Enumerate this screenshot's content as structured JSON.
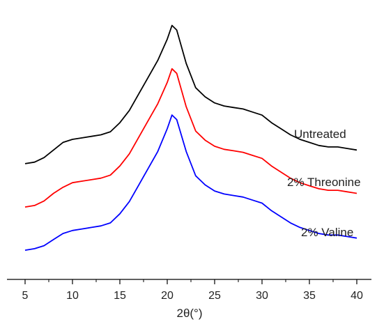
{
  "chart_data": {
    "type": "line",
    "title": "",
    "xlabel": "2θ(°)",
    "ylabel": "",
    "xlim": [
      5,
      40
    ],
    "grid": false,
    "legend": "none (series labeled directly beside curves)",
    "x_ticks": [
      "5",
      "10",
      "15",
      "20",
      "25",
      "30",
      "35",
      "40"
    ],
    "series": [
      {
        "name": "Untreated",
        "color": "#000000",
        "points": [
          [
            5,
            0.06
          ],
          [
            6,
            0.07
          ],
          [
            7,
            0.1
          ],
          [
            8,
            0.15
          ],
          [
            9,
            0.2
          ],
          [
            10,
            0.22
          ],
          [
            11,
            0.23
          ],
          [
            12,
            0.24
          ],
          [
            13,
            0.25
          ],
          [
            14,
            0.27
          ],
          [
            15,
            0.33
          ],
          [
            16,
            0.41
          ],
          [
            17,
            0.52
          ],
          [
            18,
            0.63
          ],
          [
            19,
            0.74
          ],
          [
            20,
            0.88
          ],
          [
            20.5,
            0.97
          ],
          [
            21,
            0.94
          ],
          [
            22,
            0.72
          ],
          [
            23,
            0.56
          ],
          [
            24,
            0.5
          ],
          [
            25,
            0.46
          ],
          [
            26,
            0.44
          ],
          [
            27,
            0.43
          ],
          [
            28,
            0.42
          ],
          [
            29,
            0.4
          ],
          [
            30,
            0.38
          ],
          [
            31,
            0.33
          ],
          [
            32,
            0.29
          ],
          [
            33,
            0.25
          ],
          [
            34,
            0.22
          ],
          [
            35,
            0.2
          ],
          [
            36,
            0.18
          ],
          [
            37,
            0.17
          ],
          [
            38,
            0.17
          ],
          [
            39,
            0.16
          ],
          [
            40,
            0.15
          ]
        ]
      },
      {
        "name": "2% Threonine",
        "color": "#ff0000",
        "points": [
          [
            5,
            0.05
          ],
          [
            6,
            0.06
          ],
          [
            7,
            0.09
          ],
          [
            8,
            0.14
          ],
          [
            9,
            0.18
          ],
          [
            10,
            0.21
          ],
          [
            11,
            0.22
          ],
          [
            12,
            0.23
          ],
          [
            13,
            0.24
          ],
          [
            14,
            0.26
          ],
          [
            15,
            0.32
          ],
          [
            16,
            0.4
          ],
          [
            17,
            0.51
          ],
          [
            18,
            0.62
          ],
          [
            19,
            0.73
          ],
          [
            20,
            0.87
          ],
          [
            20.5,
            0.96
          ],
          [
            21,
            0.93
          ],
          [
            22,
            0.71
          ],
          [
            23,
            0.55
          ],
          [
            24,
            0.49
          ],
          [
            25,
            0.45
          ],
          [
            26,
            0.43
          ],
          [
            27,
            0.42
          ],
          [
            28,
            0.41
          ],
          [
            29,
            0.39
          ],
          [
            30,
            0.37
          ],
          [
            31,
            0.32
          ],
          [
            32,
            0.28
          ],
          [
            33,
            0.24
          ],
          [
            34,
            0.21
          ],
          [
            35,
            0.19
          ],
          [
            36,
            0.17
          ],
          [
            37,
            0.16
          ],
          [
            38,
            0.16
          ],
          [
            39,
            0.15
          ],
          [
            40,
            0.14
          ]
        ]
      },
      {
        "name": "2% Valine",
        "color": "#0000ff",
        "points": [
          [
            5,
            0.05
          ],
          [
            6,
            0.06
          ],
          [
            7,
            0.08
          ],
          [
            8,
            0.12
          ],
          [
            9,
            0.16
          ],
          [
            10,
            0.18
          ],
          [
            11,
            0.19
          ],
          [
            12,
            0.2
          ],
          [
            13,
            0.21
          ],
          [
            14,
            0.23
          ],
          [
            15,
            0.29
          ],
          [
            16,
            0.37
          ],
          [
            17,
            0.48
          ],
          [
            18,
            0.59
          ],
          [
            19,
            0.7
          ],
          [
            20,
            0.85
          ],
          [
            20.5,
            0.94
          ],
          [
            21,
            0.91
          ],
          [
            22,
            0.7
          ],
          [
            23,
            0.54
          ],
          [
            24,
            0.48
          ],
          [
            25,
            0.44
          ],
          [
            26,
            0.42
          ],
          [
            27,
            0.41
          ],
          [
            28,
            0.4
          ],
          [
            29,
            0.38
          ],
          [
            30,
            0.36
          ],
          [
            31,
            0.31
          ],
          [
            32,
            0.27
          ],
          [
            33,
            0.23
          ],
          [
            34,
            0.2
          ],
          [
            35,
            0.18
          ],
          [
            36,
            0.16
          ],
          [
            37,
            0.15
          ],
          [
            38,
            0.15
          ],
          [
            39,
            0.14
          ],
          [
            40,
            0.13
          ]
        ]
      }
    ]
  }
}
